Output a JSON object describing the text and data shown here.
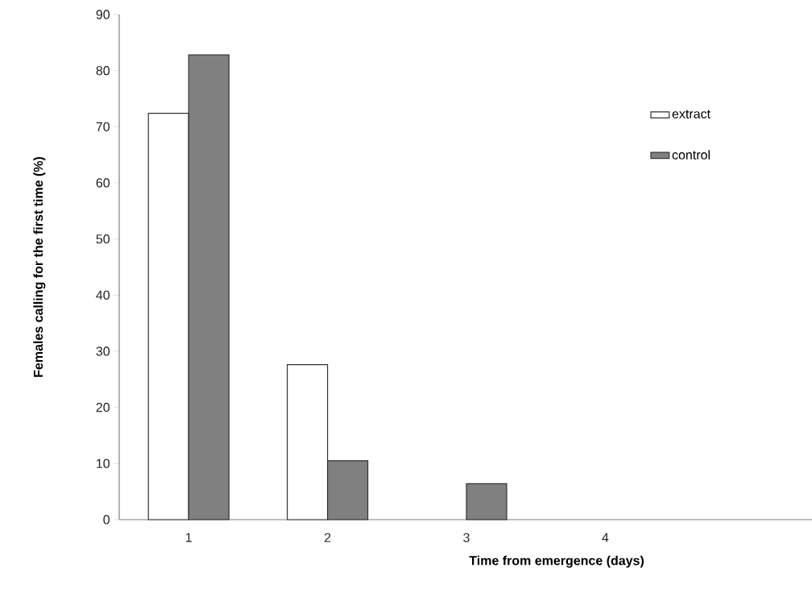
{
  "chart_data": {
    "type": "bar",
    "xlabel": "Time from emergence (days)",
    "ylabel": "Females calling for the first time (%)",
    "categories": [
      "1",
      "2",
      "3",
      "4",
      null
    ],
    "series": [
      {
        "name": "extract",
        "color": "#ffffff",
        "values": [
          72.4,
          27.6,
          null,
          null,
          null
        ]
      },
      {
        "name": "control",
        "color": "#808080",
        "values": [
          82.8,
          10.5,
          6.4,
          null,
          null
        ]
      }
    ],
    "ylim": [
      0,
      90
    ],
    "yticks": [
      0,
      10,
      20,
      30,
      40,
      50,
      60,
      70,
      80,
      90
    ],
    "grid": false,
    "legend": "top right"
  }
}
